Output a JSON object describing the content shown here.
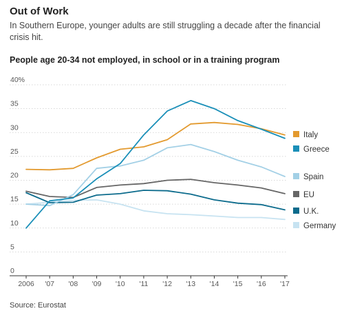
{
  "header": {
    "title": "Out of Work",
    "subtitle": "In Southern Europe, younger adults are still struggling a decade after the financial crisis hit."
  },
  "footer": {
    "source": "Source: Eurostat"
  },
  "chart_data": {
    "type": "line",
    "title": "People age 20-34 not employed, in school or in a training program",
    "x": [
      2006,
      2007,
      2008,
      2009,
      2010,
      2011,
      2012,
      2013,
      2014,
      2015,
      2016,
      2017
    ],
    "xtick_labels": [
      "2006",
      "'07",
      "'08",
      "'09",
      "'10",
      "'11",
      "'12",
      "'13",
      "'14",
      "'15",
      "'16",
      "'17"
    ],
    "ylim": [
      0,
      40
    ],
    "ytick_labels": [
      "0",
      "5",
      "10",
      "15",
      "20",
      "25",
      "30",
      "35",
      "40%"
    ],
    "grid": true,
    "legend_position": "right",
    "series": [
      {
        "name": "Italy",
        "color": "#e39a2f",
        "values": [
          22.3,
          22.2,
          22.5,
          24.7,
          26.5,
          27.0,
          28.5,
          31.8,
          32.1,
          31.7,
          30.8,
          29.5
        ]
      },
      {
        "name": "Greece",
        "color": "#1a8fb8",
        "values": [
          10.0,
          15.7,
          16.3,
          20.3,
          23.5,
          29.5,
          34.5,
          36.7,
          35.0,
          32.5,
          30.7,
          28.8
        ]
      },
      {
        "name": "Spain",
        "color": "#a3d0e6",
        "values": [
          15.0,
          14.7,
          17.0,
          22.5,
          23.0,
          24.2,
          26.8,
          27.5,
          26.0,
          24.2,
          22.8,
          20.8
        ]
      },
      {
        "name": "EU",
        "color": "#666666",
        "values": [
          17.7,
          16.6,
          16.4,
          18.5,
          19.0,
          19.3,
          20.0,
          20.2,
          19.5,
          19.0,
          18.4,
          17.2
        ]
      },
      {
        "name": "U.K.",
        "color": "#0c6b8c",
        "values": [
          17.4,
          15.3,
          15.4,
          16.9,
          17.2,
          17.9,
          17.8,
          17.1,
          15.9,
          15.2,
          14.9,
          13.8
        ]
      },
      {
        "name": "Germany",
        "color": "#c7e3f1",
        "values": [
          15.0,
          15.4,
          15.8,
          15.9,
          15.0,
          13.6,
          13.0,
          12.8,
          12.5,
          12.2,
          12.2,
          11.8
        ]
      }
    ]
  }
}
